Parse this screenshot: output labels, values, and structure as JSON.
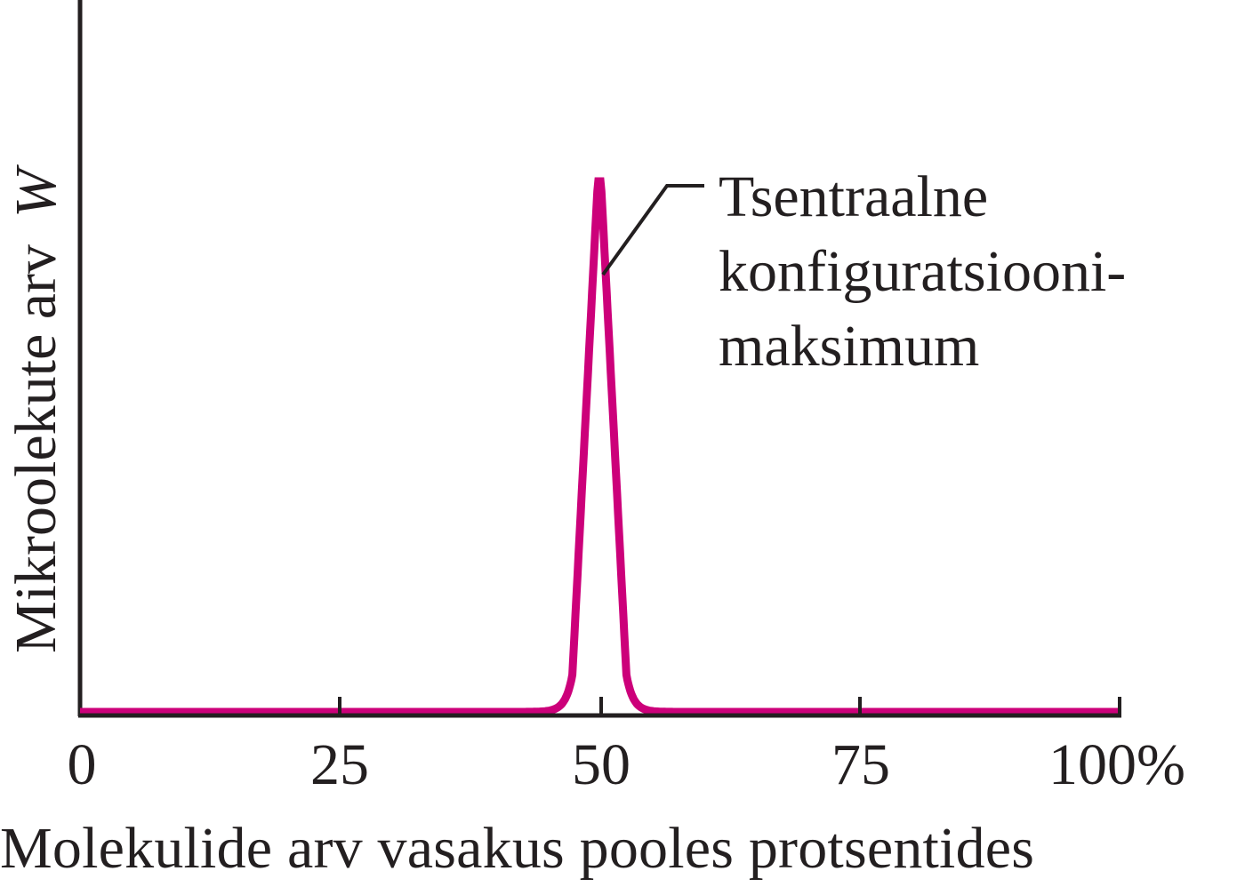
{
  "chart_data": {
    "type": "line",
    "title": "",
    "xlabel": "Molekulide arv vasakus pooles protsentides",
    "ylabel": "Mikroolekute arv",
    "ylabel_symbol": "W",
    "x_ticks": [
      "0",
      "25",
      "50",
      "75",
      "100%"
    ],
    "x_tick_values": [
      0,
      25,
      50,
      75,
      100
    ],
    "xlim": [
      0,
      100
    ],
    "y_ticks": [],
    "grid": false,
    "legend": null,
    "line_color": "#cc007a",
    "series": [
      {
        "name": "W",
        "x": [
          0,
          10,
          20,
          30,
          40,
          44,
          46,
          47,
          48,
          49,
          50,
          51,
          52,
          53,
          54,
          56,
          60,
          70,
          80,
          90,
          100
        ],
        "values": [
          0,
          0,
          0,
          0,
          0,
          0.005,
          0.03,
          0.1,
          0.42,
          0.86,
          1.0,
          0.86,
          0.42,
          0.1,
          0.03,
          0.005,
          0,
          0,
          0,
          0,
          0
        ]
      }
    ],
    "annotations": [
      {
        "text": "Tsentraalne konfiguratsiooni-maksimum",
        "points_to": {
          "x": 50,
          "y": 0.82
        }
      }
    ]
  },
  "labels": {
    "ylabel": "Mikroolekute arv",
    "ylabel_symbol": "W",
    "xlabel": "Molekulide arv vasakus pooles protsentides",
    "ticks": [
      "0",
      "25",
      "50",
      "75",
      "100%"
    ],
    "annotation_lines": [
      "Tsentraalne",
      "konfiguratsiooni-",
      "maksimum"
    ]
  },
  "colors": {
    "curve": "#cc007a",
    "axis": "#231f20"
  }
}
